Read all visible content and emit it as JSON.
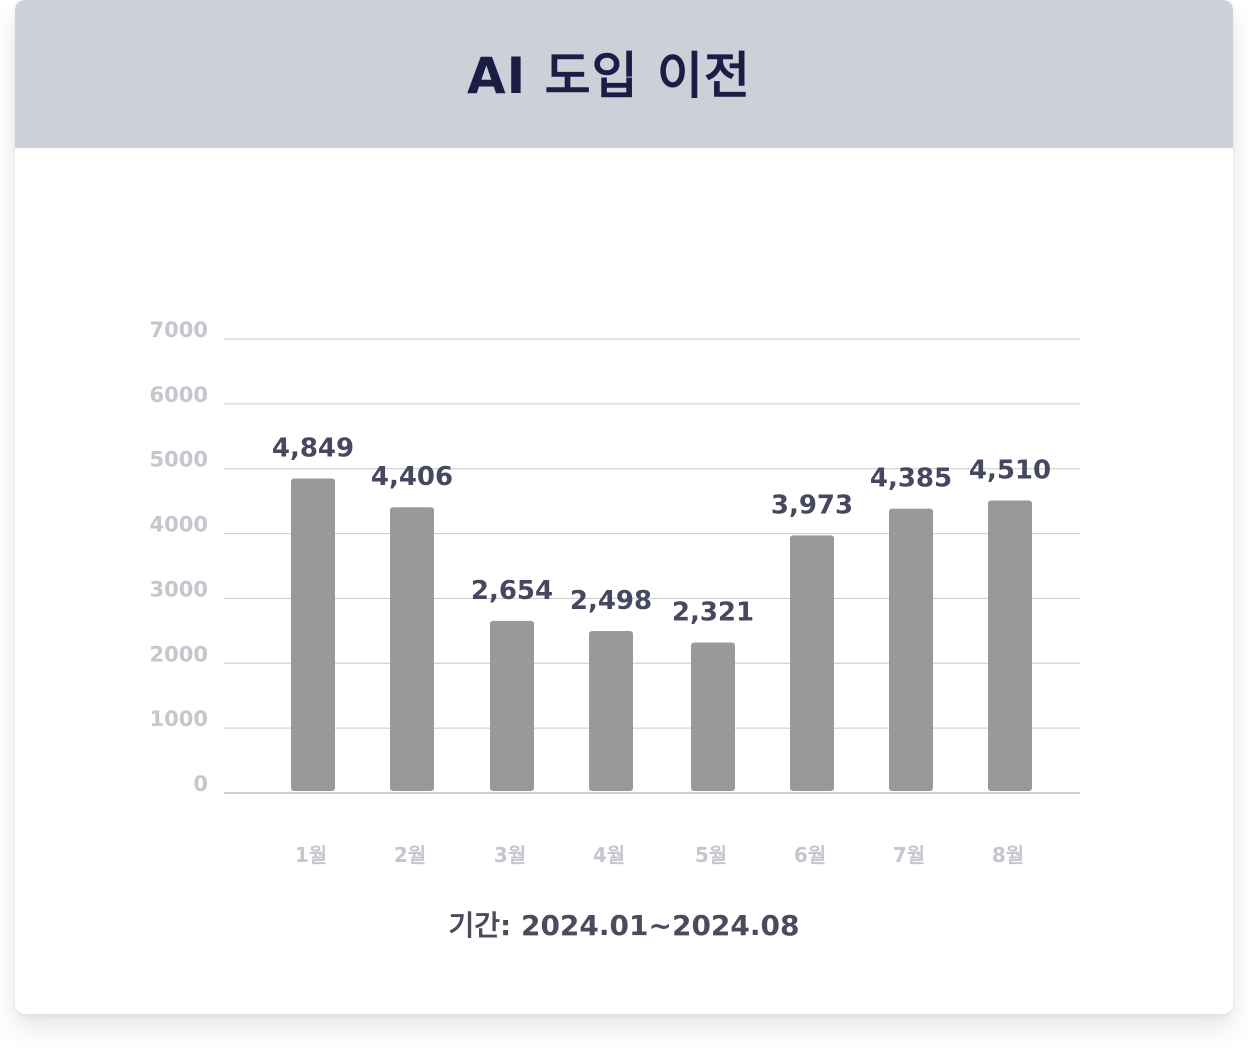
{
  "header": {
    "title": "AI 도입 이전"
  },
  "footer": {
    "period": "기간: 2024.01~2024.08"
  },
  "colors": {
    "header_bg": "#cdd0d8",
    "title": "#1a1d44",
    "bar": "#999999",
    "value_label": "#45485f",
    "tick_label": "#c5c6ce"
  },
  "chart_data": {
    "type": "bar",
    "title": "AI 도입 이전",
    "xlabel": "",
    "ylabel": "",
    "categories": [
      "1월",
      "2월",
      "3월",
      "4월",
      "5월",
      "6월",
      "7월",
      "8월"
    ],
    "values": [
      4849,
      4406,
      2654,
      2498,
      2321,
      3973,
      4385,
      4510
    ],
    "value_labels": [
      "4,849",
      "4,406",
      "2,654",
      "2,498",
      "2,321",
      "3,973",
      "4,385",
      "4,510"
    ],
    "y_ticks": [
      "0",
      "1000",
      "2000",
      "3000",
      "4000",
      "5000",
      "6000",
      "7000"
    ],
    "ylim": [
      0,
      7000
    ],
    "grid": true,
    "legend": "none"
  }
}
